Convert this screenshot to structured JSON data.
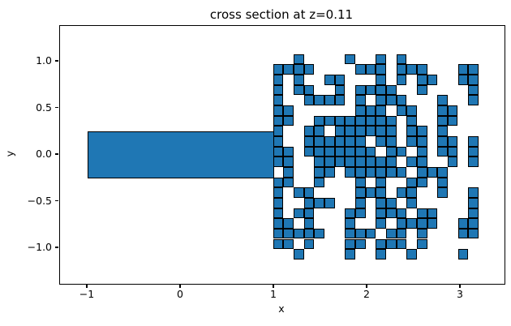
{
  "title": "cross section at z=0.11",
  "colors": {
    "fill": "#1f77b4",
    "edge": "#000000",
    "background": "#ffffff"
  },
  "chart_data": {
    "type": "scatter",
    "title": "cross section at z=0.11",
    "xlabel": "x",
    "ylabel": "y",
    "xlim": [
      -1.3,
      3.47
    ],
    "ylim": [
      -1.38,
      1.38
    ],
    "grid_visible": false,
    "legend": null,
    "x_ticks": {
      "values": [
        -1,
        0,
        1,
        2,
        3
      ],
      "labels": [
        "−1",
        "0",
        "1",
        "2",
        "3"
      ]
    },
    "y_ticks": {
      "values": [
        1.0,
        0.5,
        0.0,
        -0.5,
        -1.0
      ],
      "labels": [
        "1.0",
        "0.5",
        "0.0",
        "−0.5",
        "−1.0"
      ]
    },
    "rectangle": {
      "x_min": -1.0,
      "x_max": 1.0,
      "y_min": -0.25,
      "y_max": 0.25,
      "fill": "#1f77b4",
      "edge": "#000000"
    },
    "cell_grid": {
      "comment": "occupied square cells right of x=1; rows top(y=+1.08) to bottom, cols left(x=1.0) to right; 1=filled square of size 0.11",
      "x_origin": 1.0,
      "y_top": 1.08,
      "cell_size": 0.11,
      "n_rows": 20,
      "n_cols": 20,
      "fill": "#1f77b4",
      "edge": "#000000",
      "occupancy_rows": [
        "00100001001010000000",
        "11110000111011100011",
        "10100110001010110011",
        "10110010111100100001",
        "10011110101110001001",
        "11000000111011001100",
        "11001111111101001100",
        "10011011111101101000",
        "10011111101101101101",
        "11011111110110101101",
        "11001111111101100101",
        "01001101111110111000",
        "11001000101001101000",
        "10110000111011001001",
        "10011100101101000001",
        "10110001101110110001",
        "11010001001011110011",
        "11111001110110100011",
        "11010001101110100000",
        "00100001001001000010"
      ]
    }
  }
}
